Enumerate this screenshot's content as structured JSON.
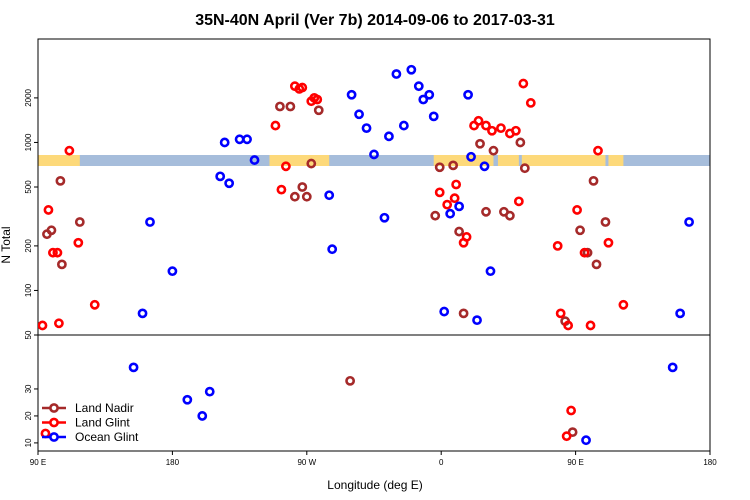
{
  "chart_data": {
    "type": "scatter",
    "title": "35N-40N April (Ver 7b)   2014-09-06 to 2017-03-31",
    "xlabel": "Longitude (deg E)",
    "ylabel": "N Total",
    "x_ticks": [
      {
        "value": 90,
        "label": "90 E"
      },
      {
        "value": 180,
        "label": "180"
      },
      {
        "value": 270,
        "label": "90 W"
      },
      {
        "value": 360,
        "label": "0"
      },
      {
        "value": 450,
        "label": "90 E"
      },
      {
        "value": 540,
        "label": "180"
      }
    ],
    "upper_panel": {
      "scale": "log",
      "ylim": [
        50,
        5000
      ],
      "y_ticks": [
        {
          "value": 100,
          "label": "100"
        },
        {
          "value": 200,
          "label": "200"
        },
        {
          "value": 500,
          "label": "500"
        },
        {
          "value": 1000,
          "label": "1000"
        },
        {
          "value": 2000,
          "label": "2000"
        }
      ]
    },
    "lower_panel": {
      "scale": "linear",
      "ylim": [
        7,
        50
      ],
      "y_ticks": [
        {
          "value": 10,
          "label": "10"
        },
        {
          "value": 20,
          "label": "20"
        },
        {
          "value": 30,
          "label": "30"
        },
        {
          "value": 50,
          "label": "50"
        }
      ]
    },
    "legend": {
      "position": "bottom-left"
    },
    "colors": {
      "land_nadir": "#a52a2a",
      "land_glint": "#ff0000",
      "ocean_glint": "#0000ff",
      "map_land": "#fdd97a",
      "map_ocean": "#a6bddb"
    },
    "series": [
      {
        "name": "Land Nadir",
        "points": [
          {
            "x": 96,
            "y": 240
          },
          {
            "x": 99,
            "y": 255
          },
          {
            "x": 105,
            "y": 550
          },
          {
            "x": 106,
            "y": 150
          },
          {
            "x": 118,
            "y": 290
          },
          {
            "x": 252,
            "y": 1750
          },
          {
            "x": 259,
            "y": 1750
          },
          {
            "x": 262,
            "y": 430
          },
          {
            "x": 267,
            "y": 500
          },
          {
            "x": 270,
            "y": 430
          },
          {
            "x": 273,
            "y": 720
          },
          {
            "x": 278,
            "y": 1650
          },
          {
            "x": 299,
            "y": 33
          },
          {
            "x": 356,
            "y": 320
          },
          {
            "x": 359,
            "y": 680
          },
          {
            "x": 368,
            "y": 700
          },
          {
            "x": 372,
            "y": 250
          },
          {
            "x": 375,
            "y": 70
          },
          {
            "x": 386,
            "y": 980
          },
          {
            "x": 390,
            "y": 340
          },
          {
            "x": 395,
            "y": 880
          },
          {
            "x": 402,
            "y": 340
          },
          {
            "x": 406,
            "y": 320
          },
          {
            "x": 413,
            "y": 1000
          },
          {
            "x": 416,
            "y": 670
          },
          {
            "x": 443,
            "y": 62
          },
          {
            "x": 448,
            "y": 14
          },
          {
            "x": 453,
            "y": 255
          },
          {
            "x": 458,
            "y": 180
          },
          {
            "x": 462,
            "y": 550
          },
          {
            "x": 464,
            "y": 150
          },
          {
            "x": 470,
            "y": 290
          }
        ]
      },
      {
        "name": "Land Glint",
        "points": [
          {
            "x": 93,
            "y": 58
          },
          {
            "x": 95,
            "y": 13.5
          },
          {
            "x": 97,
            "y": 350
          },
          {
            "x": 100,
            "y": 180
          },
          {
            "x": 103,
            "y": 180
          },
          {
            "x": 104,
            "y": 60
          },
          {
            "x": 111,
            "y": 880
          },
          {
            "x": 117,
            "y": 210
          },
          {
            "x": 128,
            "y": 80
          },
          {
            "x": 249,
            "y": 1300
          },
          {
            "x": 253,
            "y": 480
          },
          {
            "x": 256,
            "y": 690
          },
          {
            "x": 262,
            "y": 2400
          },
          {
            "x": 265,
            "y": 2300
          },
          {
            "x": 267,
            "y": 2350
          },
          {
            "x": 273,
            "y": 1900
          },
          {
            "x": 275,
            "y": 2000
          },
          {
            "x": 277,
            "y": 1950
          },
          {
            "x": 359,
            "y": 460
          },
          {
            "x": 364,
            "y": 380
          },
          {
            "x": 369,
            "y": 420
          },
          {
            "x": 370,
            "y": 520
          },
          {
            "x": 375,
            "y": 210
          },
          {
            "x": 377,
            "y": 230
          },
          {
            "x": 382,
            "y": 1300
          },
          {
            "x": 385,
            "y": 1400
          },
          {
            "x": 390,
            "y": 1300
          },
          {
            "x": 394,
            "y": 1200
          },
          {
            "x": 400,
            "y": 1250
          },
          {
            "x": 406,
            "y": 1150
          },
          {
            "x": 410,
            "y": 1200
          },
          {
            "x": 412,
            "y": 400
          },
          {
            "x": 415,
            "y": 2500
          },
          {
            "x": 420,
            "y": 1850
          },
          {
            "x": 438,
            "y": 200
          },
          {
            "x": 440,
            "y": 70
          },
          {
            "x": 444,
            "y": 12.5
          },
          {
            "x": 445,
            "y": 58
          },
          {
            "x": 447,
            "y": 22
          },
          {
            "x": 451,
            "y": 350
          },
          {
            "x": 456,
            "y": 180
          },
          {
            "x": 460,
            "y": 58
          },
          {
            "x": 465,
            "y": 880
          },
          {
            "x": 472,
            "y": 210
          },
          {
            "x": 482,
            "y": 80
          }
        ]
      },
      {
        "name": "Ocean Glint",
        "points": [
          {
            "x": 154,
            "y": 38
          },
          {
            "x": 160,
            "y": 70
          },
          {
            "x": 165,
            "y": 290
          },
          {
            "x": 180,
            "y": 135
          },
          {
            "x": 190,
            "y": 26
          },
          {
            "x": 200,
            "y": 20
          },
          {
            "x": 205,
            "y": 29
          },
          {
            "x": 212,
            "y": 590
          },
          {
            "x": 215,
            "y": 1000
          },
          {
            "x": 218,
            "y": 530
          },
          {
            "x": 225,
            "y": 1050
          },
          {
            "x": 230,
            "y": 1050
          },
          {
            "x": 235,
            "y": 760
          },
          {
            "x": 285,
            "y": 440
          },
          {
            "x": 287,
            "y": 190
          },
          {
            "x": 300,
            "y": 2100
          },
          {
            "x": 305,
            "y": 1550
          },
          {
            "x": 310,
            "y": 1250
          },
          {
            "x": 315,
            "y": 830
          },
          {
            "x": 322,
            "y": 310
          },
          {
            "x": 325,
            "y": 1100
          },
          {
            "x": 330,
            "y": 2900
          },
          {
            "x": 335,
            "y": 1300
          },
          {
            "x": 340,
            "y": 3100
          },
          {
            "x": 345,
            "y": 2400
          },
          {
            "x": 348,
            "y": 1950
          },
          {
            "x": 352,
            "y": 2100
          },
          {
            "x": 355,
            "y": 1500
          },
          {
            "x": 362,
            "y": 72
          },
          {
            "x": 366,
            "y": 330
          },
          {
            "x": 372,
            "y": 370
          },
          {
            "x": 378,
            "y": 2100
          },
          {
            "x": 380,
            "y": 800
          },
          {
            "x": 384,
            "y": 63
          },
          {
            "x": 389,
            "y": 690
          },
          {
            "x": 393,
            "y": 135
          },
          {
            "x": 457,
            "y": 11
          },
          {
            "x": 515,
            "y": 38
          },
          {
            "x": 520,
            "y": 70
          },
          {
            "x": 526,
            "y": 290
          }
        ]
      }
    ]
  }
}
